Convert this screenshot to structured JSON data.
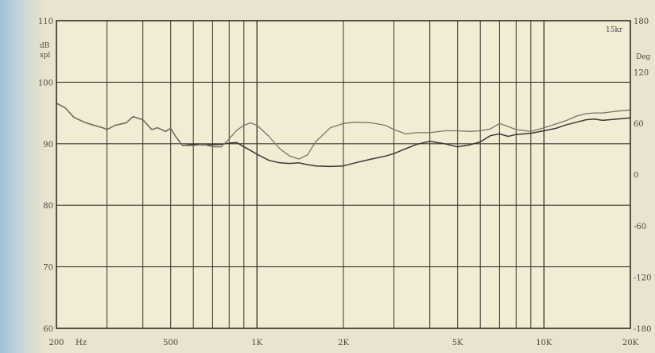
{
  "chart_data": {
    "type": "line",
    "title": "",
    "xlabel": "Hz",
    "ylabel_left": "dB spl",
    "ylabel_right": "Deg",
    "x_scale": "log",
    "xlim": [
      200,
      20000
    ],
    "ylim": [
      60,
      110
    ],
    "y2lim": [
      -180,
      180
    ],
    "grid": true,
    "x_tick_labels": [
      "200",
      "Hz",
      "500",
      "1K",
      "2K",
      "5K",
      "10K",
      "20K"
    ],
    "y_tick_labels_left": [
      "60",
      "70",
      "80",
      "90",
      "100",
      "110"
    ],
    "y_tick_labels_right": [
      "-180",
      "-120",
      "-60",
      "0",
      "60",
      "120",
      "180"
    ],
    "corner_label": "15kr",
    "series": [
      {
        "color": "#3a3833",
        "x": [
          200,
          215,
          230,
          250,
          270,
          290,
          300,
          320,
          350,
          370,
          400,
          430,
          450,
          480,
          500,
          520,
          550,
          600,
          650,
          700,
          750,
          800,
          850,
          900,
          950,
          1000,
          1100,
          1200,
          1300,
          1400,
          1500,
          1600,
          1800,
          2000,
          2200,
          2500,
          2800,
          3000,
          3300,
          3600,
          4000,
          4500,
          5000,
          5500,
          6000,
          6500,
          7000,
          7500,
          8000,
          9000,
          10000,
          11000,
          12000,
          13000,
          14000,
          15000,
          16000,
          18000,
          20000
        ],
        "y": [
          96.6,
          95.8,
          94.3,
          93.5,
          93.0,
          92.6,
          92.3,
          93.0,
          93.4,
          94.4,
          93.9,
          92.3,
          92.6,
          92.0,
          92.5,
          91.2,
          89.7,
          89.9,
          89.8,
          89.8,
          89.9,
          90.1,
          90.2,
          89.5,
          88.9,
          88.3,
          87.3,
          86.9,
          86.8,
          86.9,
          86.6,
          86.4,
          86.3,
          86.4,
          86.9,
          87.5,
          88.0,
          88.4,
          89.2,
          89.9,
          90.4,
          90.0,
          89.5,
          89.8,
          90.3,
          91.3,
          91.6,
          91.2,
          91.5,
          91.7,
          92.1,
          92.5,
          93.1,
          93.5,
          93.9,
          94.0,
          93.8,
          94.0,
          94.2
        ]
      },
      {
        "color": "#7a746a",
        "x": [
          200,
          215,
          230,
          250,
          270,
          290,
          300,
          320,
          350,
          370,
          400,
          430,
          450,
          480,
          500,
          520,
          550,
          600,
          650,
          700,
          750,
          800,
          850,
          900,
          950,
          1000,
          1100,
          1200,
          1300,
          1400,
          1500,
          1600,
          1800,
          2000,
          2200,
          2500,
          2800,
          3000,
          3300,
          3600,
          4000,
          4500,
          5000,
          5500,
          6000,
          6500,
          7000,
          7500,
          8000,
          9000,
          10000,
          11000,
          12000,
          13000,
          14000,
          15000,
          16000,
          18000,
          20000
        ],
        "y": [
          96.6,
          95.8,
          94.3,
          93.5,
          93.0,
          92.6,
          92.3,
          93.0,
          93.4,
          94.4,
          93.9,
          92.3,
          92.6,
          92.0,
          92.5,
          91.2,
          89.7,
          89.7,
          89.9,
          89.5,
          89.5,
          90.8,
          92.2,
          93.0,
          93.4,
          93.0,
          91.2,
          89.2,
          88.0,
          87.5,
          88.2,
          90.3,
          92.6,
          93.3,
          93.5,
          93.4,
          93.0,
          92.3,
          91.6,
          91.8,
          91.8,
          92.1,
          92.1,
          92.0,
          92.1,
          92.4,
          93.3,
          92.8,
          92.3,
          92.0,
          92.6,
          93.2,
          93.8,
          94.5,
          94.9,
          95.0,
          95.0,
          95.3,
          95.5
        ]
      }
    ]
  }
}
